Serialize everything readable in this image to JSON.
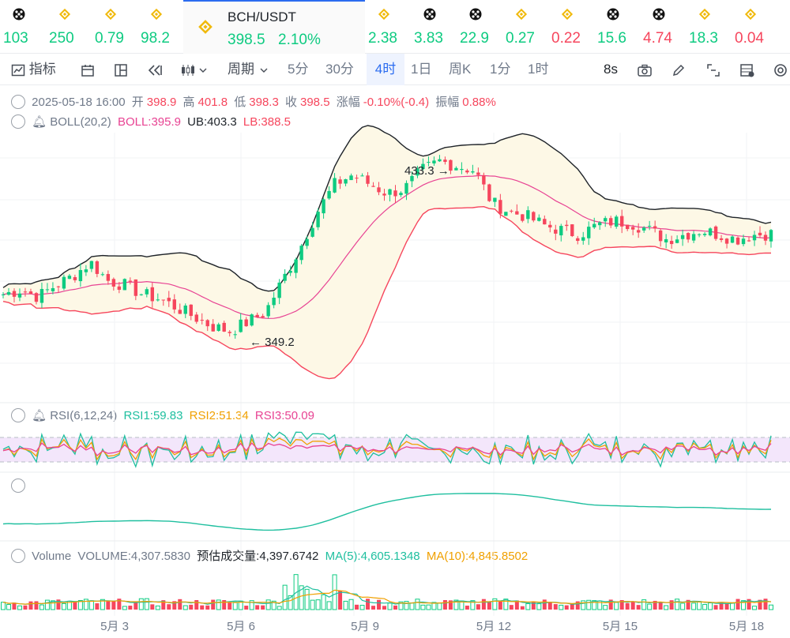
{
  "ticker": [
    {
      "value": "103",
      "dir": "up",
      "icon": "chain-icon"
    },
    {
      "value": "250",
      "dir": "up",
      "icon": "bnb-icon"
    },
    {
      "value": "0.79",
      "dir": "up",
      "icon": "bnb-icon"
    },
    {
      "value": "98.2",
      "dir": "up",
      "icon": "bnb-icon"
    },
    {
      "value": "2.38",
      "dir": "up",
      "icon": "bnb-icon"
    },
    {
      "value": "3.83",
      "dir": "up",
      "icon": "chain-icon"
    },
    {
      "value": "22.9",
      "dir": "up",
      "icon": "chain-icon"
    },
    {
      "value": "0.27",
      "dir": "up",
      "icon": "bnb-icon"
    },
    {
      "value": "0.22",
      "dir": "down",
      "icon": "bnb-icon"
    },
    {
      "value": "15.6",
      "dir": "up",
      "icon": "chain-icon"
    },
    {
      "value": "4.74",
      "dir": "down",
      "icon": "chain-icon"
    },
    {
      "value": "18.3",
      "dir": "up",
      "icon": "bnb-icon"
    },
    {
      "value": "0.04",
      "dir": "down",
      "icon": "bnb-icon"
    }
  ],
  "active": {
    "symbol": "BCH/USDT",
    "price": "398.5",
    "change": "2.10%"
  },
  "toolbar": {
    "indicator_label": "指标",
    "period_label": "周期",
    "intervals": [
      "5分",
      "30分",
      "4时",
      "1日",
      "周K",
      "1分",
      "1时"
    ],
    "selected_interval": "4时",
    "refresh": "8s"
  },
  "ohlc": {
    "date": "2025-05-18 16:00",
    "open_label": "开",
    "open": "398.9",
    "high_label": "高",
    "high": "401.8",
    "low_label": "低",
    "low": "398.3",
    "close_label": "收",
    "close": "398.5",
    "change_label": "涨幅",
    "change": "-0.10%(-0.4)",
    "amp_label": "振幅",
    "amp": "0.88%"
  },
  "boll": {
    "name": "BOLL(20,2)",
    "mid": "BOLL:395.9",
    "ub": "UB:403.3",
    "lb": "LB:388.5"
  },
  "rsi": {
    "name": "RSI(6,12,24)",
    "rsi1": "RSI1:59.83",
    "rsi2": "RSI2:51.34",
    "rsi3": "RSI3:50.09"
  },
  "volume": {
    "name": "Volume",
    "vol": "VOLUME:4,307.5830",
    "est": "预估成交量:4,397.6742",
    "ma5": "MA(5):4,605.1348",
    "ma10": "MA(10):4,845.8502"
  },
  "annotations": {
    "high_mark": "433.3",
    "low_mark": "349.2"
  },
  "colors": {
    "up": "#0ecb81",
    "down": "#f6465d",
    "accent": "#2b6cf0",
    "boll_fill": "#fdf8e6",
    "rsi_band": "#f3e6fb"
  },
  "chart_data": {
    "type": "candlestick",
    "x_ticks": [
      "5月 3",
      "5月 6",
      "5月 9",
      "5月 12",
      "5月 15",
      "5月 18"
    ],
    "price_series_overview": [
      372,
      374,
      371,
      376,
      380,
      386,
      378,
      376,
      372,
      370,
      366,
      362,
      358,
      356,
      360,
      364,
      378,
      392,
      408,
      420,
      424,
      420,
      416,
      418,
      426,
      430,
      428,
      426,
      412,
      408,
      406,
      402,
      400,
      398,
      402,
      404,
      403,
      400,
      396,
      398,
      400,
      398,
      396,
      398,
      398.5
    ],
    "high_marker": 433.3,
    "low_marker": 349.2
  }
}
